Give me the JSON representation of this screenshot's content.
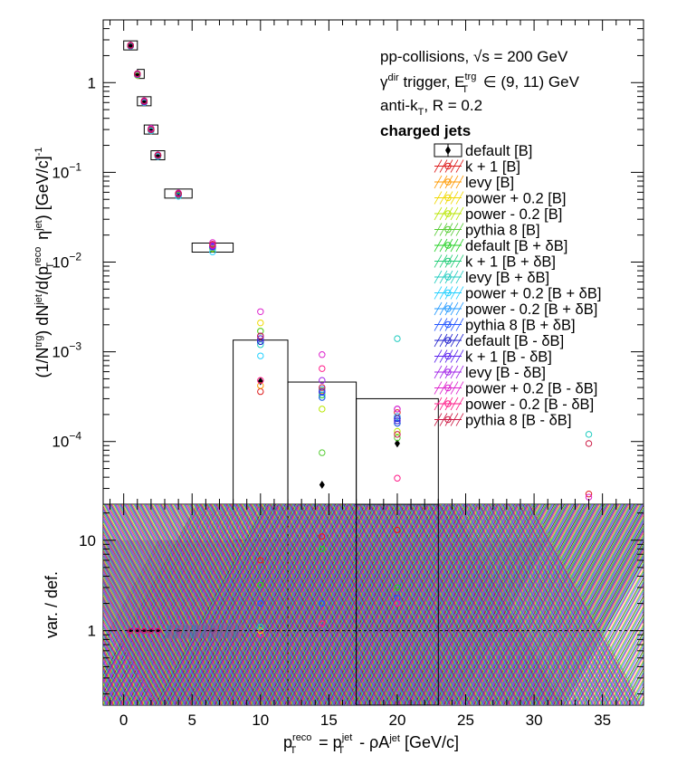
{
  "chart_data": [
    {
      "type": "scatter",
      "panel": "spectrum",
      "xlim": [
        -1.5,
        38
      ],
      "ylim": [
        2e-05,
        5
      ],
      "yscale": "log",
      "ylabel_parts": {
        "p1": "(1/N",
        "p1sup": "trg",
        "p2": ") dN",
        "p2sup": "jet",
        "p3": "/d(p",
        "p3sup": "reco",
        "p3sub": "T",
        "p4": " η",
        "p4sup": "jet",
        "p5": ") [GeV/c]",
        "p5sup": "-1"
      },
      "yticks": [
        {
          "value": 1,
          "label": "1"
        },
        {
          "value": 0.1,
          "label": "10",
          "sup": "−1"
        },
        {
          "value": 0.01,
          "label": "10",
          "sup": "−2"
        },
        {
          "value": 0.001,
          "label": "10",
          "sup": "−3"
        },
        {
          "value": 0.0001,
          "label": "10",
          "sup": "−4"
        }
      ],
      "legend_placement": "right",
      "annotations": {
        "line1": "pp-collisions, √s = 200 GeV",
        "line2_a": "γ",
        "line2_sup": "dir",
        "line2_b": " trigger, E",
        "line2_sup2": "trg",
        "line2_sub2": "T",
        "line2_c": " ∈ (9, 11) GeV",
        "line3_a": "anti-k",
        "line3_sub": "T",
        "line3_b": ", R = 0.2",
        "line4": "charged jets"
      },
      "boxes": [
        {
          "x": [
            0.0,
            1.0
          ],
          "y": 2.6
        },
        {
          "x": [
            1.0,
            1.5
          ],
          "y": 1.25
        },
        {
          "x": [
            1.0,
            2.0
          ],
          "y": 0.62
        },
        {
          "x": [
            1.5,
            2.5
          ],
          "y": 0.3
        },
        {
          "x": [
            2.0,
            3.0
          ],
          "y": 0.155
        },
        {
          "x": [
            3.0,
            5.0
          ],
          "y": 0.058
        },
        {
          "x": [
            5.0,
            8.0
          ],
          "y": 0.0145
        },
        {
          "x": [
            8.0,
            12.0
          ],
          "y": 0.00135
        },
        {
          "x": [
            12.0,
            17.0
          ],
          "y": 0.00046
        },
        {
          "x": [
            17.0,
            23.0
          ],
          "y": 0.0003
        }
      ],
      "series": [
        {
          "name": "default [B]",
          "color": "#000000",
          "marker": "diamond",
          "points": [
            [
              0.5,
              2.6
            ],
            [
              1.0,
              1.25
            ],
            [
              1.5,
              0.62
            ],
            [
              2.0,
              0.3
            ],
            [
              2.5,
              0.155
            ],
            [
              4.0,
              0.058
            ],
            [
              6.5,
              0.0155
            ],
            [
              10.0,
              0.00047
            ],
            [
              14.5,
              3.3e-05
            ],
            [
              20.0,
              9.5e-05
            ]
          ]
        },
        {
          "name": "k + 1 [B]",
          "color": "#dd1a1a",
          "points": [
            [
              0.5,
              2.55
            ],
            [
              1.0,
              1.22
            ],
            [
              1.5,
              0.61
            ],
            [
              2.0,
              0.29
            ],
            [
              2.5,
              0.15
            ],
            [
              4.0,
              0.057
            ],
            [
              6.5,
              0.0152
            ],
            [
              10.0,
              0.00036
            ],
            [
              14.5,
              0.00035
            ],
            [
              20.0,
              0.00021
            ],
            [
              34.0,
              2.6e-05
            ]
          ]
        },
        {
          "name": "levy [B]",
          "color": "#ff9900",
          "points": [
            [
              0.5,
              2.58
            ],
            [
              1.0,
              1.23
            ],
            [
              1.5,
              0.6
            ],
            [
              2.0,
              0.3
            ],
            [
              2.5,
              0.156
            ],
            [
              4.0,
              0.058
            ],
            [
              6.5,
              0.0148
            ],
            [
              10.0,
              0.00042
            ],
            [
              14.5,
              0.00035
            ],
            [
              20.0,
              0.00016
            ]
          ]
        },
        {
          "name": "power + 0.2 [B]",
          "color": "#f0d800",
          "points": [
            [
              0.5,
              2.6
            ],
            [
              1.0,
              1.24
            ],
            [
              1.5,
              0.62
            ],
            [
              2.0,
              0.3
            ],
            [
              2.5,
              0.155
            ],
            [
              4.0,
              0.058
            ],
            [
              6.5,
              0.0145
            ],
            [
              10.0,
              0.0021
            ],
            [
              14.5,
              0.00037
            ],
            [
              20.0,
              0.00019
            ]
          ]
        },
        {
          "name": "power - 0.2 [B]",
          "color": "#b8e600",
          "points": [
            [
              0.5,
              2.55
            ],
            [
              1.0,
              1.2
            ],
            [
              1.5,
              0.6
            ],
            [
              2.0,
              0.29
            ],
            [
              2.5,
              0.15
            ],
            [
              4.0,
              0.056
            ],
            [
              6.5,
              0.0142
            ],
            [
              10.0,
              0.0017
            ],
            [
              14.5,
              0.00023
            ],
            [
              20.0,
              0.00013
            ]
          ]
        },
        {
          "name": "pythia 8 [B]",
          "color": "#55cc33",
          "points": [
            [
              0.5,
              2.6
            ],
            [
              1.0,
              1.24
            ],
            [
              1.5,
              0.61
            ],
            [
              2.0,
              0.3
            ],
            [
              2.5,
              0.154
            ],
            [
              4.0,
              0.057
            ],
            [
              6.5,
              0.014
            ],
            [
              10.0,
              0.0017
            ],
            [
              14.5,
              7.5e-05
            ],
            [
              20.0,
              0.00011
            ]
          ]
        },
        {
          "name": "default [B + δB]",
          "color": "#22d022",
          "points": [
            [
              0.5,
              2.6
            ],
            [
              1.0,
              1.25
            ],
            [
              1.5,
              0.62
            ],
            [
              2.0,
              0.3
            ],
            [
              2.5,
              0.155
            ],
            [
              4.0,
              0.058
            ],
            [
              6.5,
              0.015
            ],
            [
              10.0,
              0.0014
            ],
            [
              14.5,
              0.00033
            ],
            [
              20.0,
              0.00017
            ]
          ]
        },
        {
          "name": "k + 1 [B + δB]",
          "color": "#22cc77",
          "points": [
            [
              0.5,
              2.58
            ],
            [
              1.0,
              1.24
            ],
            [
              1.5,
              0.61
            ],
            [
              2.0,
              0.3
            ],
            [
              2.5,
              0.154
            ],
            [
              4.0,
              0.057
            ],
            [
              6.5,
              0.0148
            ],
            [
              10.0,
              0.0013
            ],
            [
              14.5,
              0.00031
            ],
            [
              20.0,
              0.00016
            ]
          ]
        },
        {
          "name": "levy [B + δB]",
          "color": "#22ccc0",
          "points": [
            [
              0.5,
              2.6
            ],
            [
              1.0,
              1.23
            ],
            [
              1.5,
              0.61
            ],
            [
              2.0,
              0.3
            ],
            [
              2.5,
              0.155
            ],
            [
              4.0,
              0.058
            ],
            [
              6.5,
              0.0146
            ],
            [
              10.0,
              0.0012
            ],
            [
              14.5,
              0.00036
            ],
            [
              20.0,
              0.0014
            ],
            [
              34.0,
              0.00012
            ]
          ]
        },
        {
          "name": "power + 0.2 [B + δB]",
          "color": "#22d0ff",
          "points": [
            [
              0.5,
              2.55
            ],
            [
              1.0,
              1.22
            ],
            [
              1.5,
              0.6
            ],
            [
              2.0,
              0.29
            ],
            [
              2.5,
              0.15
            ],
            [
              4.0,
              0.054
            ],
            [
              6.5,
              0.013
            ],
            [
              10.0,
              0.0009
            ],
            [
              14.5,
              0.00035
            ],
            [
              20.0,
              0.00018
            ]
          ]
        },
        {
          "name": "power - 0.2 [B + δB]",
          "color": "#2299ff",
          "points": [
            [
              0.5,
              2.6
            ],
            [
              1.0,
              1.25
            ],
            [
              1.5,
              0.62
            ],
            [
              2.0,
              0.3
            ],
            [
              2.5,
              0.156
            ],
            [
              4.0,
              0.058
            ],
            [
              6.5,
              0.015
            ],
            [
              10.0,
              0.0015
            ],
            [
              14.5,
              0.00038
            ],
            [
              20.0,
              0.00019
            ]
          ]
        },
        {
          "name": "pythia 8 [B + δB]",
          "color": "#2255ff",
          "points": [
            [
              0.5,
              2.6
            ],
            [
              1.0,
              1.24
            ],
            [
              1.5,
              0.61
            ],
            [
              2.0,
              0.3
            ],
            [
              2.5,
              0.155
            ],
            [
              4.0,
              0.057
            ],
            [
              6.5,
              0.0147
            ],
            [
              10.0,
              0.0013
            ],
            [
              14.5,
              0.00031
            ],
            [
              20.0,
              0.00016
            ]
          ]
        },
        {
          "name": "default [B - δB]",
          "color": "#1a1acc",
          "points": [
            [
              0.5,
              2.58
            ],
            [
              1.0,
              1.24
            ],
            [
              1.5,
              0.61
            ],
            [
              2.0,
              0.3
            ],
            [
              2.5,
              0.155
            ],
            [
              4.0,
              0.057
            ],
            [
              6.5,
              0.0149
            ],
            [
              10.0,
              0.0013
            ],
            [
              14.5,
              0.00036
            ],
            [
              20.0,
              0.00018
            ]
          ]
        },
        {
          "name": "k + 1 [B - δB]",
          "color": "#5a22ee",
          "points": [
            [
              0.5,
              2.58
            ],
            [
              1.0,
              1.23
            ],
            [
              1.5,
              0.61
            ],
            [
              2.0,
              0.3
            ],
            [
              2.5,
              0.154
            ],
            [
              4.0,
              0.057
            ],
            [
              6.5,
              0.0148
            ],
            [
              10.0,
              0.0014
            ],
            [
              14.5,
              0.00036
            ],
            [
              20.0,
              0.00017
            ]
          ]
        },
        {
          "name": "levy [B - δB]",
          "color": "#a022e8",
          "points": [
            [
              0.5,
              2.6
            ],
            [
              1.0,
              1.24
            ],
            [
              1.5,
              0.62
            ],
            [
              2.0,
              0.3
            ],
            [
              2.5,
              0.155
            ],
            [
              4.0,
              0.058
            ],
            [
              6.5,
              0.0152
            ],
            [
              10.0,
              0.0015
            ],
            [
              14.5,
              0.00048
            ],
            [
              20.0,
              0.00023
            ]
          ]
        },
        {
          "name": "power + 0.2 [B - δB]",
          "color": "#dd22cc",
          "points": [
            [
              0.5,
              2.62
            ],
            [
              1.0,
              1.26
            ],
            [
              1.5,
              0.63
            ],
            [
              2.0,
              0.31
            ],
            [
              2.5,
              0.157
            ],
            [
              4.0,
              0.059
            ],
            [
              6.5,
              0.0165
            ],
            [
              10.0,
              0.0028
            ],
            [
              14.5,
              0.00093
            ],
            [
              20.0,
              0.00023
            ],
            [
              34.0,
              2.4e-05
            ]
          ]
        },
        {
          "name": "power - 0.2 [B - δB]",
          "color": "#ff1a88",
          "points": [
            [
              0.5,
              2.6
            ],
            [
              1.0,
              1.25
            ],
            [
              1.5,
              0.62
            ],
            [
              2.0,
              0.3
            ],
            [
              2.5,
              0.155
            ],
            [
              4.0,
              0.058
            ],
            [
              6.5,
              0.0155
            ],
            [
              10.0,
              0.00048
            ],
            [
              14.5,
              0.00065
            ],
            [
              20.0,
              3.9e-05
            ]
          ]
        },
        {
          "name": "pythia 8 [B - δB]",
          "color": "#cc1a44",
          "points": [
            [
              0.5,
              2.6
            ],
            [
              1.0,
              1.25
            ],
            [
              1.5,
              0.62
            ],
            [
              2.0,
              0.3
            ],
            [
              2.5,
              0.155
            ],
            [
              4.0,
              0.058
            ],
            [
              6.5,
              0.0158
            ],
            [
              10.0,
              0.0015
            ],
            [
              14.5,
              0.0004
            ],
            [
              20.0,
              0.00012
            ],
            [
              34.0,
              9.5e-05
            ]
          ]
        }
      ]
    },
    {
      "type": "scatter",
      "panel": "ratio",
      "xlim": [
        -1.5,
        38
      ],
      "ylim": [
        0.15,
        25
      ],
      "yscale": "log",
      "ylabel": "var. / def.",
      "yticks": [
        {
          "value": 1,
          "label": "1"
        },
        {
          "value": 10,
          "label": "10"
        }
      ],
      "xticks": [
        0,
        5,
        10,
        15,
        20,
        25,
        30,
        35
      ],
      "xlabel_parts": {
        "a": "p",
        "asup": "reco",
        "asub": "T",
        "b": " = p",
        "bsup": "jet",
        "bsub": "T",
        "c": " - ρA",
        "csup": "jet",
        "d": " [GeV/c]"
      },
      "reference_line": 1,
      "ratio_bins": [
        {
          "x": [
            8,
            12
          ],
          "ylo": 0.15,
          "yhi": 10
        },
        {
          "x": [
            12,
            17
          ],
          "ylo": 0.15,
          "yhi": 25
        },
        {
          "x": [
            17,
            23
          ],
          "ylo": 0.15,
          "yhi": 25
        }
      ],
      "ratio_points": [
        {
          "x": 10.0,
          "values": [
            6.0,
            3.2,
            2.0,
            0.9,
            1.0,
            1.1
          ]
        },
        {
          "x": 14.5,
          "values": [
            11.0,
            8.0,
            2.0,
            1.2
          ]
        },
        {
          "x": 20.0,
          "values": [
            13.0,
            3.0,
            2.3,
            2.0
          ]
        }
      ]
    }
  ]
}
